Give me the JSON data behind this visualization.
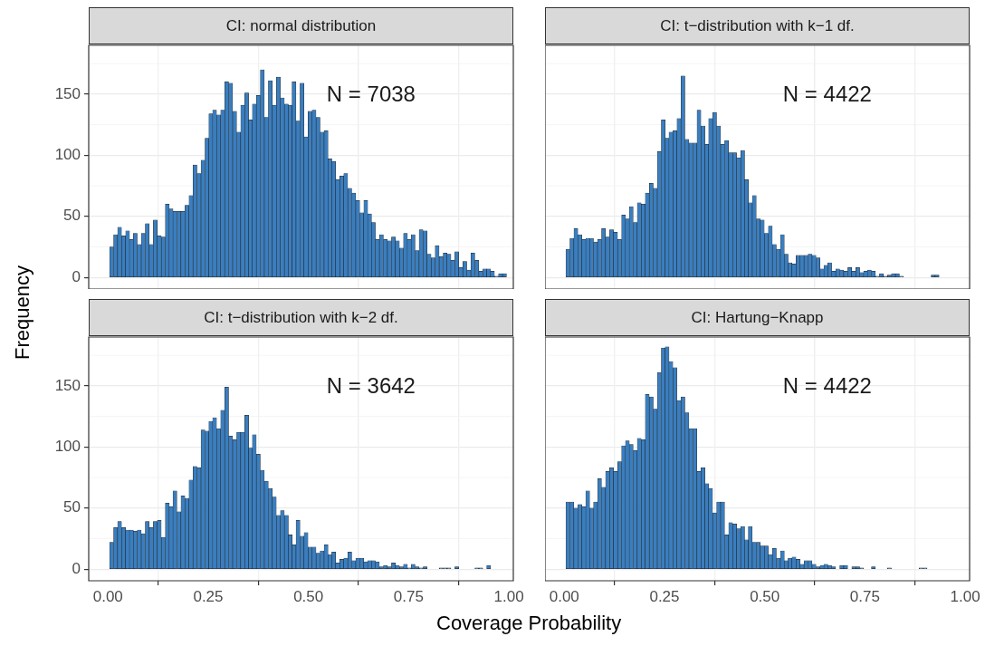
{
  "chart_data": [
    {
      "type": "histogram",
      "title": "CI: normal distribution",
      "ylabel": "Frequency",
      "color": "#3a7ebf",
      "grid": true,
      "tick_labels": "y",
      "annotations": [
        "N = 7038"
      ],
      "bins": [
        0.004,
        0.014,
        0.024,
        0.034,
        0.044,
        0.054,
        0.063,
        0.073,
        0.083,
        0.093,
        0.103,
        0.113,
        0.123,
        0.133,
        0.143,
        0.153,
        0.162,
        0.172,
        0.182,
        0.192,
        0.202,
        0.212,
        0.222,
        0.232,
        0.242,
        0.252,
        0.261,
        0.271,
        0.281,
        0.291,
        0.301,
        0.311,
        0.321,
        0.331,
        0.341,
        0.351,
        0.36,
        0.37,
        0.38,
        0.39,
        0.4,
        0.41,
        0.42,
        0.43,
        0.44,
        0.45,
        0.459,
        0.469,
        0.479,
        0.489,
        0.499,
        0.509,
        0.519,
        0.529,
        0.539,
        0.549,
        0.558,
        0.568,
        0.578,
        0.588,
        0.598,
        0.608,
        0.618,
        0.628,
        0.638,
        0.648,
        0.657,
        0.667,
        0.677,
        0.687,
        0.697,
        0.707,
        0.717,
        0.727,
        0.737,
        0.747,
        0.756,
        0.766,
        0.776,
        0.786,
        0.796,
        0.806,
        0.816,
        0.826,
        0.836,
        0.846,
        0.855,
        0.865,
        0.875,
        0.885,
        0.895,
        0.905,
        0.915,
        0.925,
        0.935,
        0.945,
        0.954,
        0.964,
        0.974,
        0.984,
        0.994
      ],
      "values": [
        25,
        35,
        41,
        34,
        38,
        31,
        36,
        27,
        36,
        44,
        27,
        47,
        34,
        33,
        60,
        56,
        54,
        54,
        54,
        59,
        67,
        92,
        85,
        96,
        114,
        134,
        137,
        133,
        137,
        160,
        159,
        136,
        119,
        141,
        151,
        129,
        142,
        149,
        170,
        131,
        161,
        141,
        164,
        147,
        142,
        141,
        160,
        128,
        159,
        115,
        136,
        137,
        131,
        119,
        120,
        97,
        95,
        80,
        83,
        85,
        73,
        69,
        63,
        53,
        63,
        52,
        45,
        31,
        35,
        31,
        30,
        33,
        30,
        24,
        36,
        31,
        35,
        22,
        39,
        38,
        19,
        16,
        26,
        17,
        20,
        19,
        14,
        21,
        8,
        13,
        6,
        20,
        14,
        5,
        7,
        7,
        5,
        1,
        3,
        3
      ],
      "xlim": [
        -0.048,
        1.011
      ],
      "xticks": [
        {
          "value": 0,
          "label": null
        },
        {
          "value": 0.25,
          "label": null
        },
        {
          "value": 0.5,
          "label": null
        },
        {
          "value": 0.75,
          "label": null
        },
        {
          "value": 1,
          "label": null
        }
      ],
      "ylim": [
        -9.5,
        190
      ],
      "yticks": [
        0,
        50,
        100,
        150
      ]
    },
    {
      "type": "histogram",
      "title": "CI: t−distribution with k−1 df.",
      "color": "#3a7ebf",
      "grid": true,
      "tick_labels": false,
      "annotations": [
        "N = 4422"
      ],
      "bins": [
        0.004,
        0.014,
        0.024,
        0.034,
        0.044,
        0.054,
        0.063,
        0.073,
        0.083,
        0.093,
        0.103,
        0.113,
        0.123,
        0.133,
        0.143,
        0.153,
        0.162,
        0.172,
        0.182,
        0.192,
        0.202,
        0.212,
        0.222,
        0.232,
        0.242,
        0.252,
        0.261,
        0.271,
        0.281,
        0.291,
        0.301,
        0.311,
        0.321,
        0.331,
        0.341,
        0.351,
        0.36,
        0.37,
        0.38,
        0.39,
        0.4,
        0.41,
        0.42,
        0.43,
        0.44,
        0.45,
        0.459,
        0.469,
        0.479,
        0.489,
        0.499,
        0.509,
        0.519,
        0.529,
        0.539,
        0.549,
        0.558,
        0.568,
        0.578,
        0.588,
        0.598,
        0.608,
        0.618,
        0.628,
        0.638,
        0.648,
        0.657,
        0.667,
        0.677,
        0.687,
        0.697,
        0.707,
        0.717,
        0.727,
        0.737,
        0.747,
        0.756,
        0.766,
        0.776,
        0.786,
        0.796,
        0.806,
        0.816,
        0.826,
        0.836,
        0.846,
        0.855,
        0.865,
        0.875,
        0.885,
        0.895,
        0.905,
        0.915,
        0.925,
        0.935,
        0.945,
        0.954,
        0.964,
        0.974,
        0.984,
        0.994
      ],
      "values": [
        23,
        32,
        40,
        35,
        31,
        32,
        32,
        29,
        31,
        40,
        33,
        39,
        37,
        31,
        51,
        48,
        58,
        45,
        61,
        60,
        69,
        77,
        73,
        103,
        129,
        114,
        119,
        120,
        130,
        165,
        113,
        110,
        110,
        137,
        124,
        109,
        130,
        135,
        124,
        109,
        112,
        102,
        102,
        98,
        104,
        80,
        61,
        67,
        48,
        47,
        36,
        42,
        27,
        23,
        35,
        19,
        12,
        11,
        18,
        18,
        18,
        19,
        18,
        16,
        7,
        10,
        12,
        5,
        7,
        6,
        5,
        8,
        5,
        8,
        4,
        5,
        6,
        5,
        1,
        3,
        1,
        2,
        3,
        3,
        1,
        0,
        0,
        0,
        0,
        0,
        0,
        0,
        2,
        2,
        0,
        0,
        0,
        0,
        0,
        0
      ],
      "xlim": [
        -0.048,
        1.011
      ],
      "xticks": [
        {
          "value": 0,
          "label": null
        },
        {
          "value": 0.25,
          "label": null
        },
        {
          "value": 0.5,
          "label": null
        },
        {
          "value": 0.75,
          "label": null
        },
        {
          "value": 1,
          "label": null
        }
      ],
      "ylim": [
        -9.5,
        190
      ],
      "yticks": [
        {
          "value": 0,
          "label": null
        },
        {
          "value": 50,
          "label": null
        },
        {
          "value": 100,
          "label": null
        },
        {
          "value": 150,
          "label": null
        }
      ]
    },
    {
      "type": "histogram",
      "title": "CI: t−distribution with k−2 df.",
      "xlabel": "Coverage Probability",
      "color": "#3a7ebf",
      "grid": true,
      "annotations": [
        "N = 3642"
      ],
      "bins": [
        0.004,
        0.014,
        0.024,
        0.034,
        0.044,
        0.054,
        0.063,
        0.073,
        0.083,
        0.093,
        0.103,
        0.113,
        0.123,
        0.133,
        0.143,
        0.153,
        0.162,
        0.172,
        0.182,
        0.192,
        0.202,
        0.212,
        0.222,
        0.232,
        0.242,
        0.252,
        0.261,
        0.271,
        0.281,
        0.291,
        0.301,
        0.311,
        0.321,
        0.331,
        0.341,
        0.351,
        0.36,
        0.37,
        0.38,
        0.39,
        0.4,
        0.41,
        0.42,
        0.43,
        0.44,
        0.45,
        0.459,
        0.469,
        0.479,
        0.489,
        0.499,
        0.509,
        0.519,
        0.529,
        0.539,
        0.549,
        0.558,
        0.568,
        0.578,
        0.588,
        0.598,
        0.608,
        0.618,
        0.628,
        0.638,
        0.648,
        0.657,
        0.667,
        0.677,
        0.687,
        0.697,
        0.707,
        0.717,
        0.727,
        0.737,
        0.747,
        0.756,
        0.766,
        0.776,
        0.786,
        0.796,
        0.806,
        0.816,
        0.826,
        0.836,
        0.846,
        0.855,
        0.865,
        0.875,
        0.885,
        0.895,
        0.905,
        0.915,
        0.925,
        0.935,
        0.945,
        0.954,
        0.964,
        0.974,
        0.984,
        0.994
      ],
      "values": [
        22,
        34,
        39,
        34,
        32,
        32,
        31,
        32,
        29,
        39,
        34,
        39,
        40,
        26,
        54,
        51,
        64,
        47,
        60,
        58,
        73,
        84,
        83,
        114,
        113,
        121,
        124,
        115,
        130,
        149,
        109,
        106,
        112,
        112,
        126,
        99,
        110,
        94,
        81,
        72,
        66,
        59,
        44,
        48,
        44,
        28,
        20,
        40,
        27,
        30,
        18,
        18,
        13,
        15,
        20,
        12,
        14,
        5,
        8,
        9,
        14,
        7,
        9,
        9,
        6,
        7,
        7,
        6,
        2,
        3,
        2,
        5,
        3,
        2,
        4,
        1,
        4,
        2,
        1,
        2,
        0,
        0,
        0,
        1,
        1,
        1,
        0,
        2,
        0,
        0,
        0,
        0,
        1,
        1,
        0,
        3,
        0,
        0,
        0,
        0
      ],
      "xlim": [
        -0.048,
        1.011
      ],
      "xticks": [
        {
          "value": 0,
          "label": "0.00"
        },
        {
          "value": 0.25,
          "label": "0.25"
        },
        {
          "value": 0.5,
          "label": "0.50"
        },
        {
          "value": 0.75,
          "label": "0.75"
        },
        {
          "value": 1,
          "label": "1.00"
        }
      ],
      "ylim": [
        -9.5,
        190
      ],
      "yticks": [
        0,
        50,
        100,
        150
      ]
    },
    {
      "type": "histogram",
      "title": "CI: Hartung−Knapp",
      "color": "#3a7ebf",
      "grid": true,
      "tick_labels": "x",
      "annotations": [
        "N = 4422"
      ],
      "bins": [
        0.004,
        0.014,
        0.024,
        0.034,
        0.044,
        0.054,
        0.063,
        0.073,
        0.083,
        0.093,
        0.103,
        0.113,
        0.123,
        0.133,
        0.143,
        0.153,
        0.162,
        0.172,
        0.182,
        0.192,
        0.202,
        0.212,
        0.222,
        0.232,
        0.242,
        0.252,
        0.261,
        0.271,
        0.281,
        0.291,
        0.301,
        0.311,
        0.321,
        0.331,
        0.341,
        0.351,
        0.36,
        0.37,
        0.38,
        0.39,
        0.4,
        0.41,
        0.42,
        0.43,
        0.44,
        0.45,
        0.459,
        0.469,
        0.479,
        0.489,
        0.499,
        0.509,
        0.519,
        0.529,
        0.539,
        0.549,
        0.558,
        0.568,
        0.578,
        0.588,
        0.598,
        0.608,
        0.618,
        0.628,
        0.638,
        0.648,
        0.657,
        0.667,
        0.677,
        0.687,
        0.697,
        0.707,
        0.717,
        0.727,
        0.737,
        0.747,
        0.756,
        0.766,
        0.776,
        0.786,
        0.796,
        0.806,
        0.816,
        0.826,
        0.836,
        0.846,
        0.855,
        0.865,
        0.875,
        0.885,
        0.895,
        0.905,
        0.915,
        0.925,
        0.935,
        0.945,
        0.954,
        0.964,
        0.974,
        0.984,
        0.994
      ],
      "values": [
        55,
        55,
        50,
        53,
        51,
        64,
        50,
        55,
        74,
        67,
        80,
        83,
        80,
        88,
        101,
        105,
        102,
        97,
        107,
        106,
        143,
        141,
        131,
        161,
        181,
        182,
        170,
        165,
        138,
        141,
        128,
        115,
        115,
        80,
        83,
        70,
        66,
        46,
        55,
        55,
        28,
        38,
        37,
        33,
        35,
        24,
        35,
        22,
        22,
        19,
        19,
        12,
        17,
        9,
        15,
        7,
        9,
        10,
        8,
        4,
        7,
        7,
        4,
        2,
        3,
        4,
        3,
        2,
        0,
        3,
        3,
        0,
        2,
        2,
        1,
        0,
        0,
        2,
        0,
        0,
        0,
        1,
        0,
        0,
        0,
        0,
        0,
        0,
        0,
        1,
        1,
        0,
        0,
        0,
        0,
        0,
        0,
        0,
        0,
        0
      ],
      "xlim": [
        -0.048,
        1.011
      ],
      "xticks": [
        {
          "value": 0,
          "label": "0.00"
        },
        {
          "value": 0.25,
          "label": "0.25"
        },
        {
          "value": 0.5,
          "label": "0.50"
        },
        {
          "value": 0.75,
          "label": "0.75"
        },
        {
          "value": 1,
          "label": "1.00"
        }
      ],
      "ylim": [
        -9.5,
        190
      ],
      "yticks": [
        {
          "value": 0,
          "label": null
        },
        {
          "value": 50,
          "label": null
        },
        {
          "value": 100,
          "label": null
        },
        {
          "value": 150,
          "label": null
        }
      ]
    }
  ]
}
